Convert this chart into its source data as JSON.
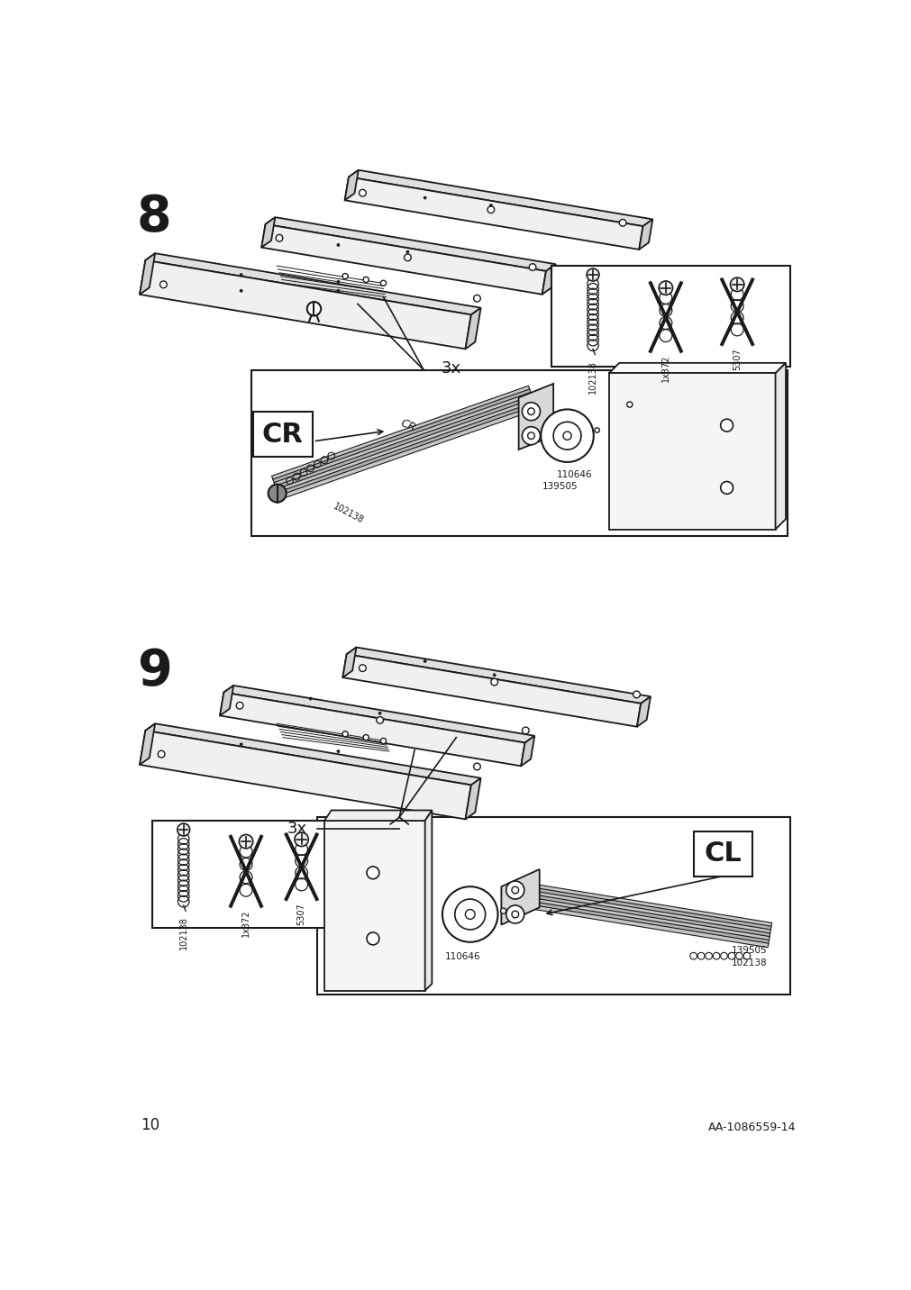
{
  "page_number": "10",
  "doc_id": "AA-1086559-14",
  "bg": "#ffffff",
  "lc": "#1a1a1a",
  "gray1": "#c8c8c8",
  "gray2": "#b0b0b0",
  "gray3": "#909090",
  "step8_label": "8",
  "step9_label": "9",
  "mul8": "3x",
  "mul9": "3x",
  "cr_label": "CR",
  "cl_label": "CL",
  "id_102138": "102138",
  "id_1x372": "1x372",
  "id_5307": "5307",
  "id_110646": "110646",
  "id_139505": "139505"
}
